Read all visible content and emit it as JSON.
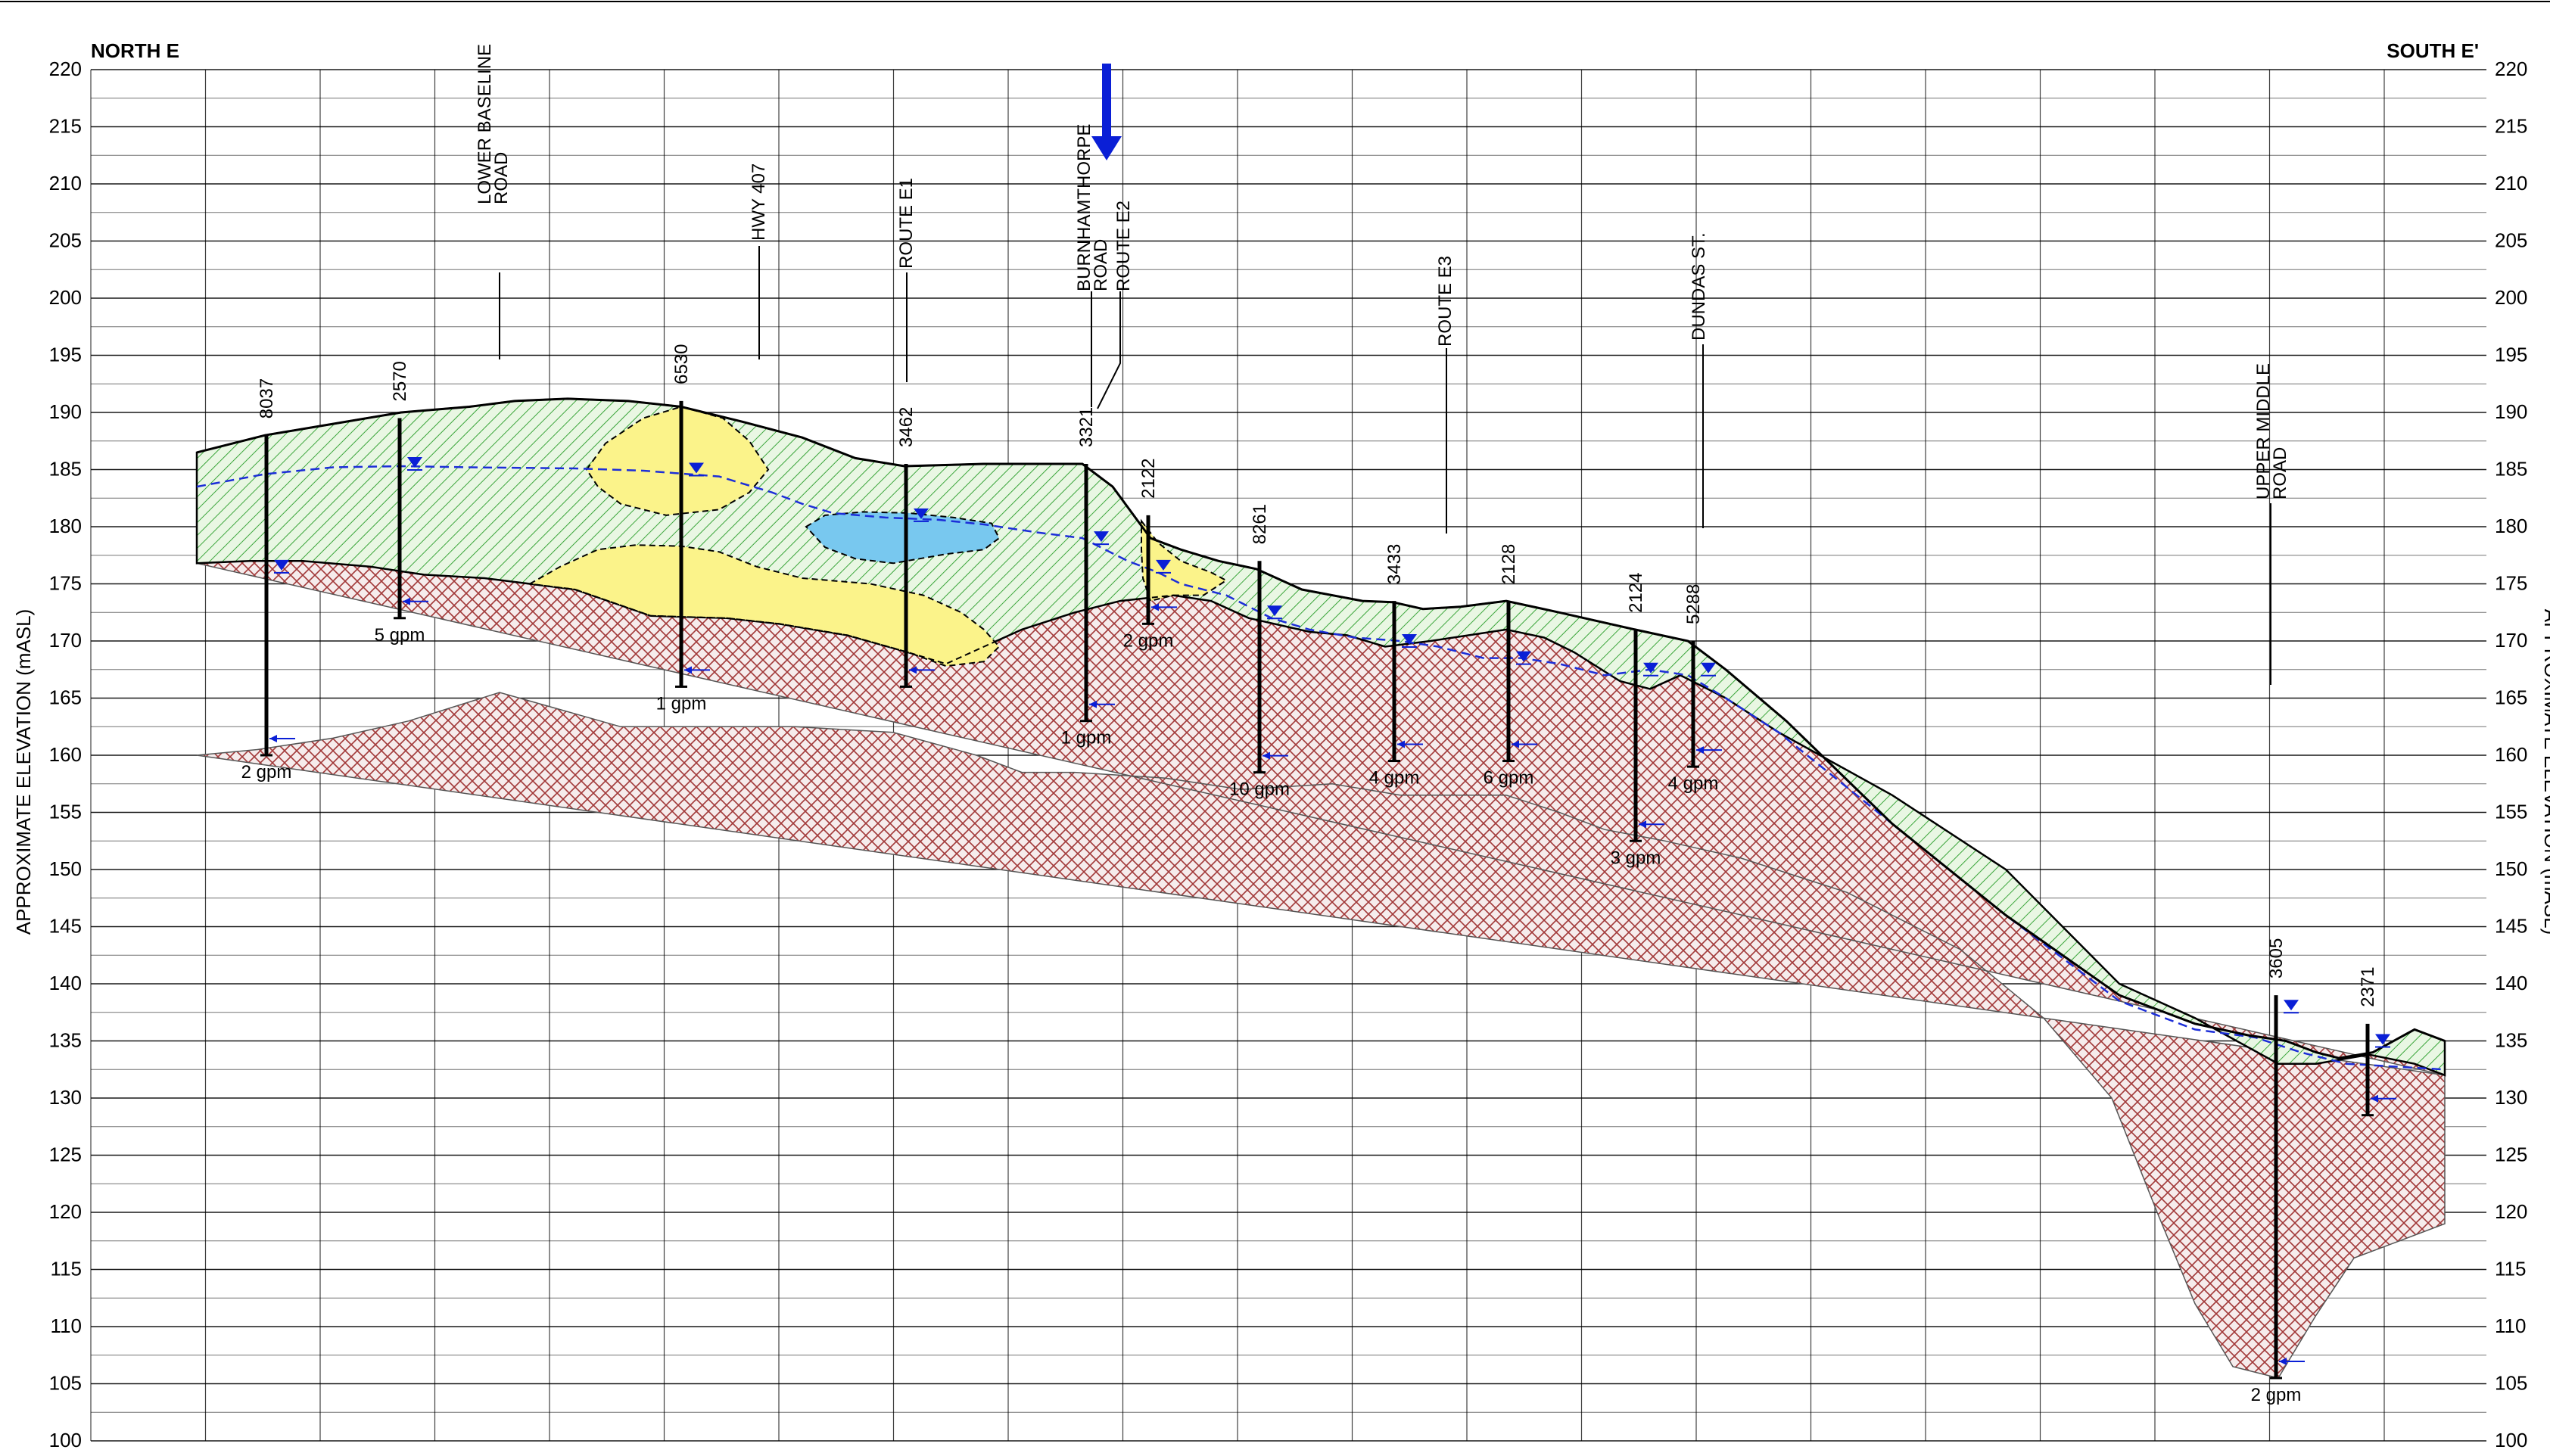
{
  "header": {
    "left_label": "NORTH E",
    "right_label": "SOUTH E'"
  },
  "axis": {
    "ylabel_left": "APPROXIMATE ELEVATION (mASL)",
    "ylabel_right": "APPROXIMATE ELEVATION (mASL)",
    "ticks": [
      220,
      215,
      210,
      205,
      200,
      195,
      190,
      185,
      180,
      175,
      170,
      165,
      160,
      155,
      150,
      145,
      140,
      135,
      130,
      125,
      120,
      115,
      110,
      105,
      100
    ]
  },
  "roads": [
    {
      "label": "LOWER BASELINE ROAD",
      "lines": [
        "LOWER BASELINE",
        "ROAD"
      ]
    },
    {
      "label": "HWY 407",
      "lines": [
        "HWY 407"
      ]
    },
    {
      "label": "ROUTE E1",
      "lines": [
        "ROUTE E1"
      ]
    },
    {
      "label": "BURNHAMTHORPE ROAD",
      "lines": [
        "BURNHAMTHORPE",
        "ROAD"
      ]
    },
    {
      "label": "ROUTE E2",
      "lines": [
        "ROUTE E2"
      ]
    },
    {
      "label": "ROUTE E3",
      "lines": [
        "ROUTE E3"
      ]
    },
    {
      "label": "DUNDAS ST.",
      "lines": [
        "DUNDAS ST."
      ]
    },
    {
      "label": "UPPER MIDDLE ROAD",
      "lines": [
        "UPPER MIDDLE",
        "ROAD"
      ]
    }
  ],
  "wells": [
    {
      "id": "8037",
      "top_elev": 188.0,
      "bottom_elev": 160.0,
      "water_elev": 176.5,
      "yield": "2 gpm"
    },
    {
      "id": "2570",
      "top_elev": 189.5,
      "bottom_elev": 172.0,
      "water_elev": 185.5,
      "yield": "5 gpm"
    },
    {
      "id": "6530",
      "top_elev": 191.0,
      "bottom_elev": 166.0,
      "water_elev": 185.0,
      "yield": "1 gpm"
    },
    {
      "id": "3462",
      "top_elev": 185.5,
      "bottom_elev": 166.0,
      "water_elev": 181.0,
      "yield": ""
    },
    {
      "id": "3321",
      "top_elev": 185.5,
      "bottom_elev": 163.0,
      "water_elev": 179.0,
      "yield": "1 gpm"
    },
    {
      "id": "2122",
      "top_elev": 181.0,
      "bottom_elev": 171.5,
      "water_elev": 176.5,
      "yield": "2 gpm"
    },
    {
      "id": "8261",
      "top_elev": 177.0,
      "bottom_elev": 158.5,
      "water_elev": 172.5,
      "yield": "10 gpm"
    },
    {
      "id": "3433",
      "top_elev": 173.5,
      "bottom_elev": 159.5,
      "water_elev": 170.0,
      "yield": "4 gpm"
    },
    {
      "id": "2128",
      "top_elev": 173.5,
      "bottom_elev": 159.5,
      "water_elev": 168.5,
      "yield": "6 gpm"
    },
    {
      "id": "2124",
      "top_elev": 171.0,
      "bottom_elev": 152.5,
      "water_elev": 167.5,
      "yield": "3 gpm"
    },
    {
      "id": "5288",
      "top_elev": 170.0,
      "bottom_elev": 159.0,
      "water_elev": 167.5,
      "yield": "4 gpm"
    },
    {
      "id": "3605",
      "top_elev": 139.0,
      "bottom_elev": 105.5,
      "water_elev": 138.0,
      "yield": "2 gpm"
    },
    {
      "id": "2371",
      "top_elev": 136.5,
      "bottom_elev": 128.5,
      "water_elev": 135.0,
      "yield": ""
    }
  ],
  "colors": {
    "overburden_hatch": "#3aa53a",
    "overburden_fill": "#e9f7e3",
    "sand_lens": "#fbf38a",
    "water_lens": "#78c8ef",
    "bedrock_hatch": "#a23a3a",
    "bedrock_fill": "#f6ecec",
    "water_table": "#1c2ed8",
    "arrow": "#0a1fd6",
    "grid": "#000000"
  },
  "legend_items": []
}
